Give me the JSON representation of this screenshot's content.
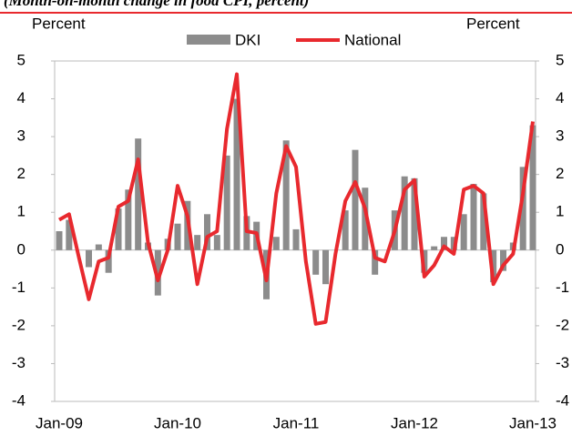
{
  "chart_data": {
    "type": "bar_line",
    "title": "(Month-on-month change in food CPI, percent)",
    "ylabel": "Percent",
    "y2label": "Percent",
    "categories": [
      "Jan-09",
      null,
      null,
      null,
      null,
      null,
      null,
      null,
      null,
      null,
      null,
      null,
      "Jan-10",
      null,
      null,
      null,
      null,
      null,
      null,
      null,
      null,
      null,
      null,
      null,
      "Jan-11",
      null,
      null,
      null,
      null,
      null,
      null,
      null,
      null,
      null,
      null,
      null,
      "Jan-12",
      null,
      null,
      null,
      null,
      null,
      null,
      null,
      null,
      null,
      null,
      null,
      "Jan-13"
    ],
    "series": [
      {
        "name": "DKI",
        "color": "#8c8c8c",
        "kind": "bar",
        "values": [
          0.5,
          0.8,
          0.0,
          -0.45,
          0.15,
          -0.6,
          1.1,
          1.6,
          2.95,
          0.2,
          -1.2,
          0.3,
          0.7,
          1.3,
          0.4,
          0.95,
          0.4,
          2.5,
          4.0,
          0.9,
          0.75,
          -1.3,
          0.35,
          2.9,
          0.55,
          0.0,
          -0.65,
          -0.9,
          0.0,
          1.05,
          2.65,
          1.65,
          -0.65,
          0.0,
          1.05,
          1.95,
          1.9,
          -0.6,
          0.1,
          0.35,
          0.35,
          0.95,
          1.75,
          1.5,
          -0.85,
          -0.55,
          0.2,
          2.2,
          3.3
        ]
      },
      {
        "name": "National",
        "color": "#e8292e",
        "kind": "line",
        "values": [
          0.8,
          0.95,
          -0.2,
          -1.3,
          -0.3,
          -0.2,
          1.15,
          1.3,
          2.4,
          0.2,
          -0.8,
          0.0,
          1.7,
          0.9,
          -0.9,
          0.35,
          0.5,
          3.2,
          4.65,
          0.5,
          0.45,
          -0.8,
          1.5,
          2.75,
          2.2,
          -0.3,
          -1.95,
          -1.9,
          -0.1,
          1.3,
          1.8,
          1.1,
          -0.2,
          -0.3,
          0.5,
          1.6,
          1.85,
          -0.7,
          -0.4,
          0.1,
          -0.1,
          1.6,
          1.7,
          1.5,
          -0.9,
          -0.4,
          -0.1,
          1.5,
          3.4
        ]
      }
    ],
    "ylim": [
      -4,
      5
    ],
    "yticks": [
      -4,
      -3,
      -2,
      -1,
      0,
      1,
      2,
      3,
      4,
      5
    ],
    "y2lim": [
      -4,
      5
    ],
    "y2ticks": [
      -4,
      -3,
      -2,
      -1,
      0,
      1,
      2,
      3,
      4,
      5
    ],
    "legend": "top"
  }
}
